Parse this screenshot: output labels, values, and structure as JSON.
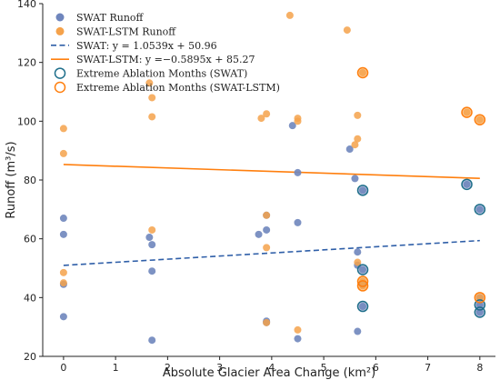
{
  "chart_data": {
    "type": "scatter",
    "xlabel": "Absolute Glacier Area Change (km²)",
    "ylabel": "Runoff (m³/s)",
    "xlim": [
      -0.4,
      8.3
    ],
    "ylim": [
      20,
      140
    ],
    "xticks": [
      0,
      1,
      2,
      3,
      4,
      5,
      6,
      7,
      8
    ],
    "yticks": [
      20,
      40,
      60,
      80,
      100,
      120,
      140
    ],
    "grid": false,
    "legend_position": "top-left",
    "colors": {
      "swat": "#6f86bd",
      "lstm": "#f5a24b",
      "swat_line": "#2f5fa8",
      "lstm_line": "#ff7f0e",
      "swat_ring": "#1f6f8b",
      "lstm_ring": "#ff7f0e"
    },
    "series": [
      {
        "name": "SWAT Runoff",
        "kind": "points",
        "points": [
          [
            0,
            33.5
          ],
          [
            0,
            44.5
          ],
          [
            0,
            61.5
          ],
          [
            0,
            67
          ],
          [
            1.65,
            60.5
          ],
          [
            1.7,
            58
          ],
          [
            1.7,
            49
          ],
          [
            1.7,
            25.5
          ],
          [
            3.75,
            61.5
          ],
          [
            3.9,
            63
          ],
          [
            3.9,
            31.5
          ],
          [
            3.9,
            32
          ],
          [
            3.9,
            68
          ],
          [
            4.4,
            98.5
          ],
          [
            4.5,
            82.5
          ],
          [
            4.5,
            65.5
          ],
          [
            4.5,
            26
          ],
          [
            5.5,
            90.5
          ],
          [
            5.6,
            80.5
          ],
          [
            5.65,
            55.5
          ],
          [
            5.65,
            51
          ],
          [
            5.65,
            28.5
          ],
          [
            5.75,
            76.5
          ],
          [
            5.75,
            49.5
          ],
          [
            5.75,
            37
          ],
          [
            5.75,
            44.5
          ],
          [
            7.75,
            78.5
          ],
          [
            8.0,
            70
          ],
          [
            8.0,
            37.5
          ],
          [
            8.0,
            35
          ],
          [
            8.0,
            40
          ]
        ]
      },
      {
        "name": "SWAT-LSTM Runoff",
        "kind": "points",
        "points": [
          [
            0,
            97.5
          ],
          [
            0,
            89
          ],
          [
            0,
            48.5
          ],
          [
            0,
            45
          ],
          [
            1.65,
            113
          ],
          [
            1.7,
            108
          ],
          [
            1.7,
            101.5
          ],
          [
            1.7,
            63
          ],
          [
            3.8,
            101
          ],
          [
            3.9,
            102.5
          ],
          [
            3.9,
            68
          ],
          [
            3.9,
            57
          ],
          [
            3.9,
            31.5
          ],
          [
            4.35,
            136
          ],
          [
            4.5,
            101
          ],
          [
            4.5,
            100
          ],
          [
            4.5,
            29
          ],
          [
            5.45,
            131
          ],
          [
            5.6,
            92
          ],
          [
            5.65,
            94
          ],
          [
            5.65,
            102
          ],
          [
            5.65,
            52
          ],
          [
            5.75,
            116.5
          ],
          [
            5.75,
            44
          ],
          [
            5.75,
            45.5
          ],
          [
            7.75,
            103
          ],
          [
            8.0,
            100.5
          ],
          [
            8.0,
            40
          ]
        ]
      },
      {
        "name": "SWAT: y = 1.0539x + 50.96",
        "kind": "line",
        "slope": 1.0539,
        "intercept": 50.96,
        "x_range": [
          0,
          8
        ]
      },
      {
        "name": "SWAT-LSTM: y =−0.5895x + 85.27",
        "kind": "line",
        "slope": -0.5895,
        "intercept": 85.27,
        "x_range": [
          0,
          8
        ]
      },
      {
        "name": "Extreme Ablation Months (SWAT)",
        "kind": "highlight",
        "points": [
          [
            5.75,
            76.5
          ],
          [
            5.75,
            49.5
          ],
          [
            5.75,
            37
          ],
          [
            7.75,
            78.5
          ],
          [
            8.0,
            70
          ],
          [
            8.0,
            37.5
          ],
          [
            8.0,
            35
          ]
        ]
      },
      {
        "name": "Extreme Ablation Months (SWAT-LSTM)",
        "kind": "highlight",
        "points": [
          [
            5.75,
            116.5
          ],
          [
            5.75,
            44
          ],
          [
            5.75,
            45.5
          ],
          [
            7.75,
            103
          ],
          [
            8.0,
            100.5
          ],
          [
            8.0,
            40
          ]
        ]
      }
    ]
  }
}
